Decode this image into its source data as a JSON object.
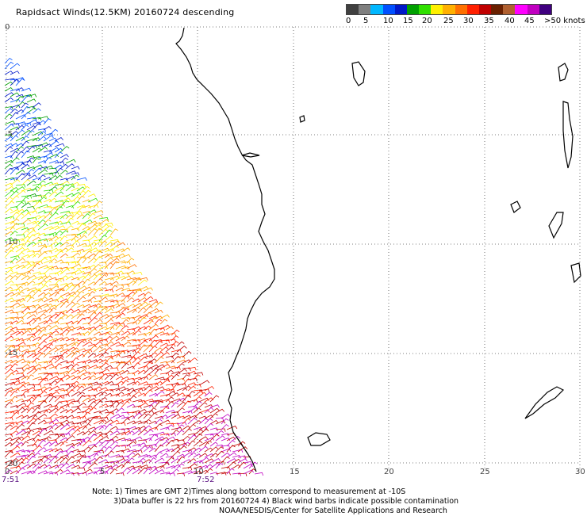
{
  "title": "Rapidsact Winds(12.5KM) 20160724 descending",
  "colorbar": {
    "colors": [
      "#404040",
      "#7f7f7f",
      "#00b7ff",
      "#0050ff",
      "#0018c8",
      "#00a000",
      "#30e000",
      "#fff000",
      "#ffb000",
      "#ff7000",
      "#ff2000",
      "#c00000",
      "#6a2000",
      "#b06030",
      "#ff00ff",
      "#c000c0",
      "#400080"
    ],
    "labels": [
      "0",
      "5",
      "10",
      "15",
      "20",
      "25",
      "30",
      "35",
      "40",
      "45",
      ">50 knots"
    ]
  },
  "axes": {
    "x_ticks": [
      "0",
      "5",
      "10",
      "15",
      "20",
      "25",
      "30"
    ],
    "y_ticks": [
      "0",
      "-5",
      "-10",
      "-15",
      "-20"
    ]
  },
  "times": [
    "7:51",
    "7:52"
  ],
  "notes": [
    "Note: 1) Times are GMT 2)Times along bottom correspond to measurement at -10S",
    "3)Data buffer is 22 hrs from 20160724 4) Black wind barbs indicate possible contamination",
    "NOAA/NESDIS/Center for Satellite Applications and Research"
  ]
}
